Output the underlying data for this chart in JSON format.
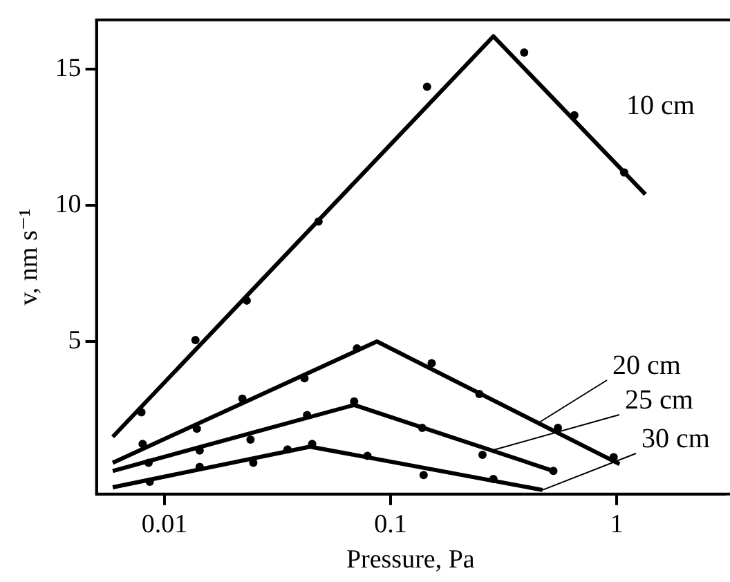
{
  "chart_data": {
    "type": "line",
    "xlabel": "Pressure, Pa",
    "ylabel": "v, nm s⁻¹",
    "log": "x",
    "xlim": [
      0.005,
      3
    ],
    "xticks": [
      0.01,
      0.1,
      1
    ],
    "ylim": [
      -0.6,
      16.8
    ],
    "yticks": [
      5,
      10,
      15
    ],
    "grid": false,
    "legend": "right",
    "line_style": "solid",
    "series": [
      {
        "name": "10 cm",
        "type": "line",
        "marker": "none",
        "color": "#000000",
        "x": [
          0.0059,
          0.285,
          1.34
        ],
        "values": [
          1.5,
          16.2,
          10.4
        ]
      },
      {
        "name": "20 cm",
        "type": "line",
        "marker": "none",
        "color": "#000000",
        "x": [
          0.0059,
          0.087,
          1.03
        ],
        "values": [
          0.55,
          5.0,
          0.5
        ]
      },
      {
        "name": "25 cm",
        "type": "line",
        "marker": "none",
        "color": "#000000",
        "x": [
          0.0059,
          0.069,
          0.525
        ],
        "values": [
          0.25,
          2.67,
          0.25
        ]
      },
      {
        "name": "30 cm",
        "type": "line",
        "marker": "none",
        "color": "#000000",
        "x": [
          0.0059,
          0.044,
          0.47
        ],
        "values": [
          -0.35,
          1.14,
          -0.45
        ]
      },
      {
        "type": "scatter",
        "marker": "circle",
        "color": "#000000",
        "x": [
          0.0079,
          0.0137,
          0.0231,
          0.048,
          0.145,
          0.39,
          0.65,
          1.08
        ],
        "values": [
          2.4,
          5.05,
          6.5,
          9.4,
          14.35,
          15.6,
          13.3,
          11.2
        ]
      },
      {
        "type": "scatter",
        "marker": "circle",
        "color": "#000000",
        "x": [
          0.008,
          0.0139,
          0.0221,
          0.0416,
          0.071,
          0.152,
          0.247,
          0.55,
          0.97
        ],
        "values": [
          1.24,
          1.8,
          2.9,
          3.65,
          4.75,
          4.2,
          3.07,
          1.83,
          0.75
        ]
      },
      {
        "type": "scatter",
        "marker": "circle",
        "color": "#000000",
        "x": [
          0.0085,
          0.0143,
          0.024,
          0.0427,
          0.069,
          0.138,
          0.255,
          0.525
        ],
        "values": [
          0.55,
          1.0,
          1.4,
          2.3,
          2.8,
          1.83,
          0.84,
          0.25
        ]
      },
      {
        "type": "scatter",
        "marker": "circle",
        "color": "#000000",
        "x": [
          0.0086,
          0.0143,
          0.0247,
          0.035,
          0.045,
          0.079,
          0.14,
          0.285
        ],
        "values": [
          -0.15,
          0.4,
          0.55,
          1.04,
          1.24,
          0.8,
          0.1,
          -0.05
        ]
      }
    ]
  }
}
